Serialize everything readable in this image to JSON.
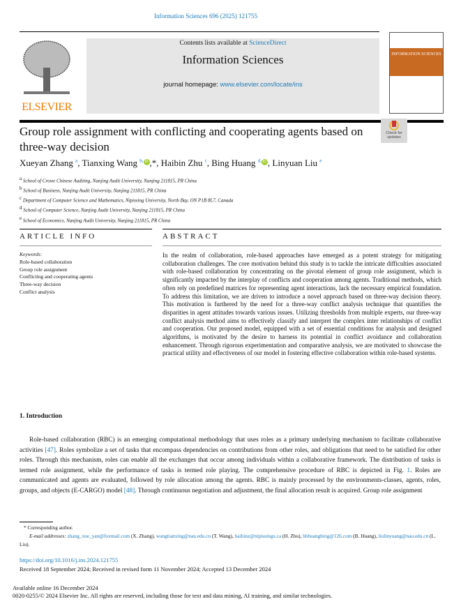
{
  "header": {
    "journal_ref": "Information Sciences 696 (2025) 121755",
    "contents_prefix": "Contents lists available at ",
    "contents_link": "ScienceDirect",
    "journal_title": "Information Sciences",
    "homepage_prefix": "journal homepage: ",
    "homepage_link": "www.elsevier.com/locate/ins",
    "publisher_logo": "ELSEVIER",
    "cover_title": "INFORMATION SCIENCES"
  },
  "check_updates": "Check for updates",
  "article": {
    "title": "Group role assignment with conflicting and cooperating agents based on three-way decision",
    "authors": [
      {
        "name": "Xueyan Zhang",
        "sup": "a"
      },
      {
        "name": "Tianxing Wang",
        "sup": "b,",
        "extra": ",*"
      },
      {
        "name": "Haibin Zhu",
        "sup": "c"
      },
      {
        "name": "Bing Huang",
        "sup": "d,"
      },
      {
        "name": "Linyuan Liu",
        "sup": "e"
      }
    ],
    "affiliations": [
      {
        "sup": "a",
        "text": "School of Crowe Chinese Auditing, Nanjing Audit University, Nanjing 211815, PR China"
      },
      {
        "sup": "b",
        "text": "School of Business, Nanjing Audit University, Nanjing 211815, PR China"
      },
      {
        "sup": "c",
        "text": "Department of Computer Science and Mathematics, Nipissing University, North Bay, ON P1B 8L7, Canada"
      },
      {
        "sup": "d",
        "text": "School of Computer Science, Nanjing Audit University, Nanjing 211815, PR China"
      },
      {
        "sup": "e",
        "text": "School of Economics, Nanjing Audit University, Nanjing 211815, PR China"
      }
    ]
  },
  "article_info": {
    "heading": "ARTICLE INFO",
    "keywords_label": "Keywords:",
    "keywords": [
      "Role-based collaboration",
      "Group role assignment",
      "Conflicting and cooperating agents",
      "Three-way decision",
      "Conflict analysis"
    ]
  },
  "abstract": {
    "heading": "ABSTRACT",
    "text": "In the realm of collaboration, role-based approaches have emerged as a potent strategy for mitigating collaboration challenges. The core motivation behind this study is to tackle the intricate difficulties associated with role-based collaboration by concentrating on the pivotal element of group role assignment, which is significantly impacted by the interplay of conflicts and cooperation among agents. Traditional methods, which often rely on predefined matrices for representing agent interactions, lack the necessary empirical foundation. To address this limitation, we are driven to introduce a novel approach based on three-way decision theory. This motivation is furthered by the need for a three-way conflict analysis technique that quantifies the disparities in agent attitudes towards various issues. Utilizing thresholds from multiple experts, our three-way conflict analysis method aims to effectively classify and interpret the complex inter relationships of conflict and cooperation. Our proposed model, equipped with a set of essential conditions for analysis and designed algorithms, is motivated by the desire to harness its potential in conflict avoidance and collaboration enhancement. Through rigorous experimentation and comparative analysis, we are motivated to showcase the practical utility and effectiveness of our model in fostering effective collaboration within role-based systems."
  },
  "introduction": {
    "heading": "1. Introduction",
    "p1": "Role-based collaboration (RBC) is an emerging computational methodology that uses roles as a primary underlying mechanism to facilitate collaborative activities ",
    "ref1": "[47]",
    "p2": ". Roles symbolize a set of tasks that encompass dependencies on contributions from other roles, and obligations that need to be satisfied for other roles. Through this mechanism, roles can enable all the exchanges that occur among individuals within a collaborative framework. The distribution of tasks is termed role assignment, while the performance of tasks is termed role playing. The comprehensive procedure of RBC is depicted in Fig. ",
    "ref2": "1",
    "p3": ". Roles are communicated and agents are evaluated, followed by role allocation among the agents. RBC is mainly processed by the environments-classes, agents, roles, groups, and objects (E-CARGO) model ",
    "ref3": "[48]",
    "p4": ". Through continuous negotiation and adjustment, the final allocation result is acquired. Group role assignment"
  },
  "footnotes": {
    "corresponding": "Corresponding author.",
    "email_label": "E-mail addresses:",
    "emails": [
      {
        "email": "zhang_xue_yan@foxmail.com",
        "who": "(X. Zhang),"
      },
      {
        "email": "wangtianxing@nau.edu.cn",
        "who": "(T. Wang),"
      },
      {
        "email": "haibinz@nipissingu.ca",
        "who": "(H. Zhu),"
      },
      {
        "email": "hbhuangbing@126.com",
        "who": "(B. Huang),"
      },
      {
        "email": "liulinyuang@nau.edu.cn",
        "who": "(L. Liu)."
      }
    ]
  },
  "doi": "https://doi.org/10.1016/j.ins.2024.121755",
  "received": "Received 18 September 2024; Received in revised form 11 November 2024; Accepted 13 December 2024",
  "available": "Available online 16 December 2024",
  "copyright": "0020-0255/© 2024 Elsevier Inc. All rights are reserved, including those for text and data mining, AI training, and similar technologies."
}
